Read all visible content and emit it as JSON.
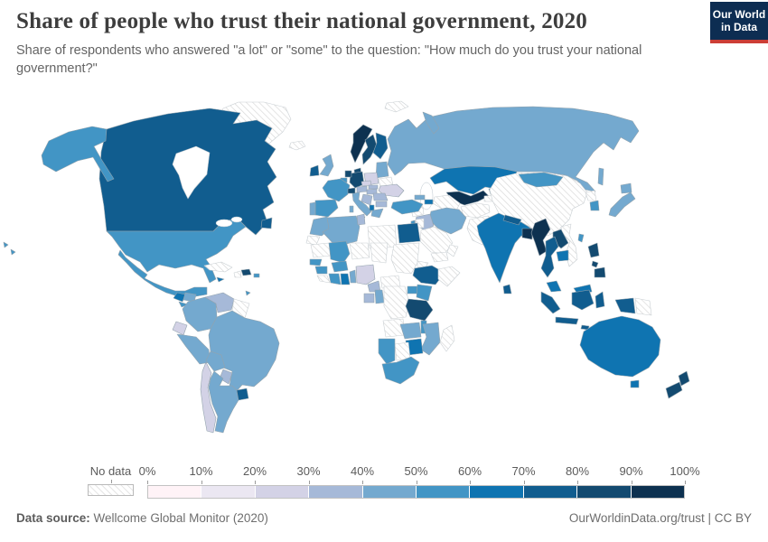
{
  "header": {
    "title": "Share of people who trust their national government, 2020",
    "subtitle": "Share of respondents who answered \"a lot\" or \"some\" to the question: \"How much do you trust your national government?\"",
    "logo": {
      "line1": "Our World",
      "line2": "in Data"
    }
  },
  "legend": {
    "no_data_label": "No data",
    "tick_labels": [
      "0%",
      "10%",
      "20%",
      "30%",
      "40%",
      "50%",
      "60%",
      "70%",
      "80%",
      "90%",
      "100%"
    ],
    "palette": [
      "#fff3f7",
      "#ebe7f2",
      "#d3d2e6",
      "#a6b9d8",
      "#74a9cf",
      "#4295c5",
      "#0f74b1",
      "#115d8f",
      "#134a70",
      "#0d3150"
    ]
  },
  "footer": {
    "datasource_label": "Data source:",
    "datasource_value": "Wellcome Global Monitor (2020)",
    "url_text": "OurWorldinData.org/trust",
    "separator": " | ",
    "license": "CC BY"
  },
  "colors": {
    "bg": "#ffffff",
    "title-color": "#3d3d3d",
    "subtitle-color": "#646464",
    "legend-text": "#5b5b5b",
    "footer-color": "#6e6e6e",
    "logo-bg": "#0d2d52",
    "logo-red": "#cc3e36",
    "logo-text": "#ffffff",
    "country-border": "#93a3ad",
    "nodata-border": "#c9cfd3",
    "hatch-line": "#d9d9d9",
    "sea-border": "#b9c4cc"
  },
  "chart_data": {
    "type": "heatmap",
    "subtype": "choropleth_world_map",
    "title": "Share of people who trust their national government, 2020",
    "unit": "% of respondents answering \"a lot\" or \"some\"",
    "legend_position": "bottom",
    "ranges": [
      "0-10%",
      "10-20%",
      "20-30%",
      "30-40%",
      "40-50%",
      "50-60%",
      "60-70%",
      "70-80%",
      "80-90%",
      "90-100%"
    ],
    "no_data_value": "nodata",
    "countries": [
      {
        "id": "canada",
        "name": "Canada",
        "bin": 7
      },
      {
        "id": "greenland",
        "name": "Greenland",
        "bin": "nodata"
      },
      {
        "id": "usa",
        "name": "United States",
        "bin": 5
      },
      {
        "id": "mexico",
        "name": "Mexico",
        "bin": 5
      },
      {
        "id": "guatemala",
        "name": "Guatemala",
        "bin": 6
      },
      {
        "id": "honduras",
        "name": "Honduras",
        "bin": 4
      },
      {
        "id": "el-salvador",
        "name": "El Salvador",
        "bin": 5
      },
      {
        "id": "nicaragua",
        "name": "Nicaragua",
        "bin": 7
      },
      {
        "id": "costa-rica",
        "name": "Costa Rica",
        "bin": 6
      },
      {
        "id": "panama",
        "name": "Panama",
        "bin": 6
      },
      {
        "id": "cuba",
        "name": "Cuba",
        "bin": "nodata"
      },
      {
        "id": "jamaica",
        "name": "Jamaica",
        "bin": 6
      },
      {
        "id": "haiti",
        "name": "Haiti",
        "bin": "nodata"
      },
      {
        "id": "dominican-republic",
        "name": "Dominican Republic",
        "bin": 8
      },
      {
        "id": "puerto-rico",
        "name": "Puerto Rico",
        "bin": 5
      },
      {
        "id": "trinidad-and-tobago",
        "name": "Trinidad and Tobago",
        "bin": 5
      },
      {
        "id": "colombia",
        "name": "Colombia",
        "bin": 4
      },
      {
        "id": "venezuela",
        "name": "Venezuela",
        "bin": 3
      },
      {
        "id": "guyanas",
        "name": "Guyana/Suriname/French Guiana",
        "bin": "nodata"
      },
      {
        "id": "ecuador",
        "name": "Ecuador",
        "bin": 2
      },
      {
        "id": "peru",
        "name": "Peru",
        "bin": 4
      },
      {
        "id": "brazil",
        "name": "Brazil",
        "bin": 4
      },
      {
        "id": "bolivia",
        "name": "Bolivia",
        "bin": 4
      },
      {
        "id": "paraguay",
        "name": "Paraguay",
        "bin": 3
      },
      {
        "id": "chile",
        "name": "Chile",
        "bin": 2
      },
      {
        "id": "argentina",
        "name": "Argentina",
        "bin": 4
      },
      {
        "id": "uruguay",
        "name": "Uruguay",
        "bin": 7
      },
      {
        "id": "iceland",
        "name": "Iceland",
        "bin": "nodata"
      },
      {
        "id": "ireland",
        "name": "Ireland",
        "bin": 7
      },
      {
        "id": "uk",
        "name": "United Kingdom",
        "bin": 4
      },
      {
        "id": "portugal",
        "name": "Portugal",
        "bin": 4
      },
      {
        "id": "spain",
        "name": "Spain",
        "bin": 5
      },
      {
        "id": "france",
        "name": "France",
        "bin": 5
      },
      {
        "id": "belgium",
        "name": "Belgium",
        "bin": 5
      },
      {
        "id": "netherlands",
        "name": "Netherlands",
        "bin": 8
      },
      {
        "id": "germany",
        "name": "Germany",
        "bin": 8
      },
      {
        "id": "denmark",
        "name": "Denmark",
        "bin": 8
      },
      {
        "id": "switzerland",
        "name": "Switzerland",
        "bin": 8
      },
      {
        "id": "austria",
        "name": "Austria",
        "bin": 3
      },
      {
        "id": "czechia",
        "name": "Czechia",
        "bin": 2
      },
      {
        "id": "poland",
        "name": "Poland",
        "bin": 2
      },
      {
        "id": "norway",
        "name": "Norway",
        "bin": 9
      },
      {
        "id": "sweden",
        "name": "Sweden",
        "bin": 8
      },
      {
        "id": "finland",
        "name": "Finland",
        "bin": 7
      },
      {
        "id": "baltics",
        "name": "Estonia/Latvia/Lithuania",
        "bin": 4
      },
      {
        "id": "belarus",
        "name": "Belarus",
        "bin": "nodata"
      },
      {
        "id": "ukraine",
        "name": "Ukraine",
        "bin": 2
      },
      {
        "id": "slovakia",
        "name": "Slovakia",
        "bin": 3
      },
      {
        "id": "hungary",
        "name": "Hungary",
        "bin": 3
      },
      {
        "id": "romania",
        "name": "Romania",
        "bin": 3
      },
      {
        "id": "serbia",
        "name": "Serbia/West Balkans",
        "bin": 3
      },
      {
        "id": "bulgaria",
        "name": "Bulgaria",
        "bin": 3
      },
      {
        "id": "albania",
        "name": "Albania",
        "bin": 6
      },
      {
        "id": "greece",
        "name": "Greece",
        "bin": 4
      },
      {
        "id": "italy",
        "name": "Italy",
        "bin": 4
      },
      {
        "id": "russia",
        "name": "Russia",
        "bin": 4
      },
      {
        "id": "turkey",
        "name": "Turkey",
        "bin": 5
      },
      {
        "id": "georgia",
        "name": "Georgia",
        "bin": 4
      },
      {
        "id": "azerbaijan",
        "name": "Azerbaijan",
        "bin": 6
      },
      {
        "id": "syria",
        "name": "Syria",
        "bin": "nodata"
      },
      {
        "id": "iraq",
        "name": "Iraq",
        "bin": 3
      },
      {
        "id": "iran",
        "name": "Iran",
        "bin": 4
      },
      {
        "id": "israel",
        "name": "Israel",
        "bin": 5
      },
      {
        "id": "jordan",
        "name": "Jordan",
        "bin": "nodata"
      },
      {
        "id": "saudi-arabia",
        "name": "Saudi Arabia",
        "bin": "nodata"
      },
      {
        "id": "yemen",
        "name": "Yemen",
        "bin": "nodata"
      },
      {
        "id": "oman",
        "name": "Oman",
        "bin": "nodata"
      },
      {
        "id": "egypt",
        "name": "Egypt",
        "bin": 7
      },
      {
        "id": "libya",
        "name": "Libya",
        "bin": "nodata"
      },
      {
        "id": "tunisia",
        "name": "Tunisia",
        "bin": 3
      },
      {
        "id": "algeria",
        "name": "Algeria",
        "bin": 4
      },
      {
        "id": "morocco",
        "name": "Morocco",
        "bin": 4
      },
      {
        "id": "western-sahara",
        "name": "Western Sahara",
        "bin": "nodata"
      },
      {
        "id": "mauritania",
        "name": "Mauritania",
        "bin": "nodata"
      },
      {
        "id": "mali",
        "name": "Mali",
        "bin": 5
      },
      {
        "id": "senegal",
        "name": "Senegal",
        "bin": 5
      },
      {
        "id": "guinea",
        "name": "Guinea",
        "bin": 5
      },
      {
        "id": "sierra-leone-liberia",
        "name": "Sierra Leone/Liberia",
        "bin": "nodata"
      },
      {
        "id": "ivory-coast",
        "name": "Cote d'Ivoire",
        "bin": 5
      },
      {
        "id": "ghana",
        "name": "Ghana",
        "bin": 6
      },
      {
        "id": "burkina-faso",
        "name": "Burkina Faso",
        "bin": 5
      },
      {
        "id": "togo-benin",
        "name": "Togo/Benin",
        "bin": 4
      },
      {
        "id": "nigeria",
        "name": "Nigeria",
        "bin": 2
      },
      {
        "id": "niger",
        "name": "Niger",
        "bin": "nodata"
      },
      {
        "id": "chad",
        "name": "Chad",
        "bin": "nodata"
      },
      {
        "id": "sudan",
        "name": "Sudan",
        "bin": "nodata"
      },
      {
        "id": "eritrea",
        "name": "Eritrea",
        "bin": "nodata"
      },
      {
        "id": "ethiopia",
        "name": "Ethiopia",
        "bin": 7
      },
      {
        "id": "somalia",
        "name": "Somalia",
        "bin": "nodata"
      },
      {
        "id": "cameroon",
        "name": "Cameroon",
        "bin": 3
      },
      {
        "id": "car",
        "name": "Central African Republic",
        "bin": "nodata"
      },
      {
        "id": "gabon",
        "name": "Gabon",
        "bin": 3
      },
      {
        "id": "congo",
        "name": "Congo",
        "bin": 4
      },
      {
        "id": "drc",
        "name": "Democratic Republic of Congo",
        "bin": "nodata"
      },
      {
        "id": "uganda",
        "name": "Uganda",
        "bin": 5
      },
      {
        "id": "kenya",
        "name": "Kenya",
        "bin": 5
      },
      {
        "id": "tanzania",
        "name": "Tanzania",
        "bin": 8
      },
      {
        "id": "angola",
        "name": "Angola",
        "bin": "nodata"
      },
      {
        "id": "zambia",
        "name": "Zambia",
        "bin": 4
      },
      {
        "id": "malawi",
        "name": "Malawi",
        "bin": 5
      },
      {
        "id": "mozambique",
        "name": "Mozambique",
        "bin": 4
      },
      {
        "id": "zimbabwe",
        "name": "Zimbabwe",
        "bin": 6
      },
      {
        "id": "botswana",
        "name": "Botswana",
        "bin": "nodata"
      },
      {
        "id": "namibia",
        "name": "Namibia",
        "bin": 5
      },
      {
        "id": "south-africa",
        "name": "South Africa",
        "bin": 5
      },
      {
        "id": "madagascar",
        "name": "Madagascar",
        "bin": "nodata"
      },
      {
        "id": "kazakhstan",
        "name": "Kazakhstan",
        "bin": 6
      },
      {
        "id": "uzbekistan",
        "name": "Uzbekistan",
        "bin": 9
      },
      {
        "id": "turkmenistan",
        "name": "Turkmenistan",
        "bin": "nodata"
      },
      {
        "id": "kyrgyzstan",
        "name": "Kyrgyzstan",
        "bin": 5
      },
      {
        "id": "tajikistan",
        "name": "Tajikistan",
        "bin": "nodata"
      },
      {
        "id": "afghanistan",
        "name": "Afghanistan",
        "bin": "nodata"
      },
      {
        "id": "pakistan",
        "name": "Pakistan",
        "bin": "nodata"
      },
      {
        "id": "india",
        "name": "India",
        "bin": 6
      },
      {
        "id": "nepal",
        "name": "Nepal",
        "bin": 7
      },
      {
        "id": "bangladesh",
        "name": "Bangladesh",
        "bin": 9
      },
      {
        "id": "sri-lanka",
        "name": "Sri Lanka",
        "bin": 7
      },
      {
        "id": "myanmar",
        "name": "Myanmar",
        "bin": 9
      },
      {
        "id": "china",
        "name": "China",
        "bin": "nodata"
      },
      {
        "id": "mongolia",
        "name": "Mongolia",
        "bin": 5
      },
      {
        "id": "north-korea",
        "name": "North Korea",
        "bin": "nodata"
      },
      {
        "id": "south-korea",
        "name": "South Korea",
        "bin": 5
      },
      {
        "id": "japan",
        "name": "Japan",
        "bin": 4
      },
      {
        "id": "taiwan",
        "name": "Taiwan",
        "bin": 5
      },
      {
        "id": "vietnam",
        "name": "Vietnam",
        "bin": "nodata"
      },
      {
        "id": "laos",
        "name": "Laos",
        "bin": 8
      },
      {
        "id": "thailand",
        "name": "Thailand",
        "bin": 7
      },
      {
        "id": "cambodia",
        "name": "Cambodia",
        "bin": 6
      },
      {
        "id": "malaysia",
        "name": "Malaysia",
        "bin": 6
      },
      {
        "id": "philippines",
        "name": "Philippines",
        "bin": 8
      },
      {
        "id": "indonesia",
        "name": "Indonesia",
        "bin": 7
      },
      {
        "id": "papua-new-guinea",
        "name": "Papua New Guinea",
        "bin": "nodata"
      },
      {
        "id": "australia",
        "name": "Australia",
        "bin": 6
      },
      {
        "id": "new-zealand",
        "name": "New Zealand",
        "bin": 8
      },
      {
        "id": "svalbard",
        "name": "Svalbard",
        "bin": "nodata"
      }
    ]
  }
}
